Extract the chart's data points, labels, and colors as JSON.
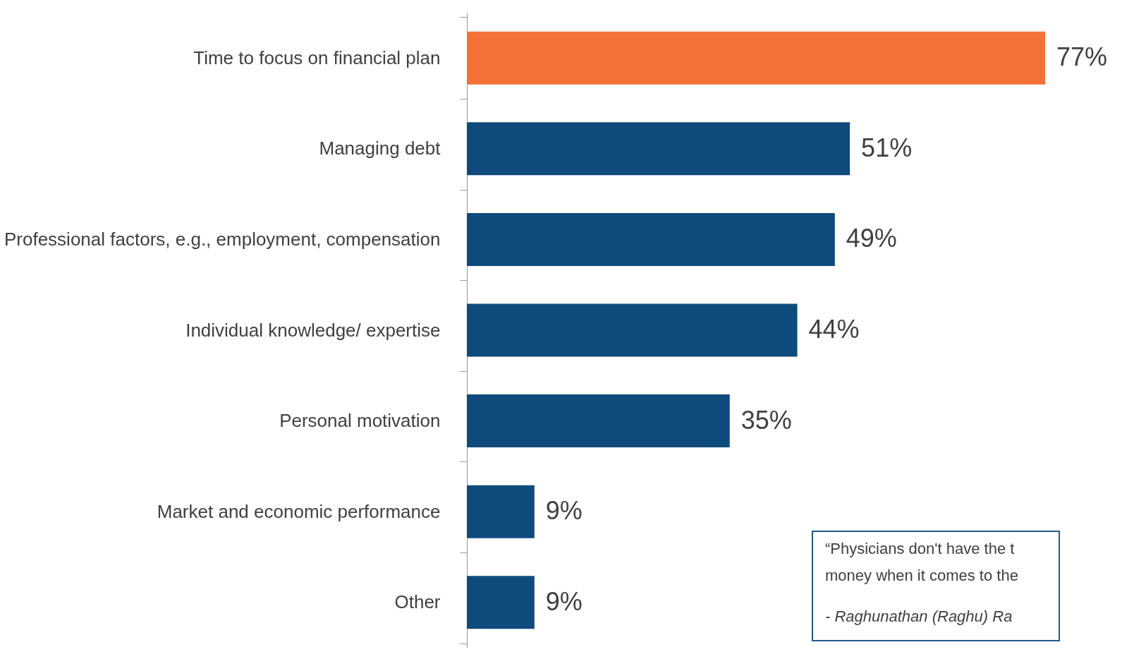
{
  "chart_data": {
    "type": "bar",
    "orientation": "horizontal",
    "grid": false,
    "categories": [
      "Time to focus on financial plan",
      "Managing debt",
      "Professional factors, e.g., employment, compensation",
      "Individual knowledge/ expertise",
      "Personal motivation",
      "Market and economic performance",
      "Other"
    ],
    "values": [
      77,
      51,
      49,
      44,
      35,
      9,
      9
    ],
    "value_labels": [
      "77%",
      "51%",
      "49%",
      "44%",
      "35%",
      "9%",
      "9%"
    ],
    "colors": [
      "#f37036",
      "#0f4a7c",
      "#0f4a7c",
      "#0f4a7c",
      "#0f4a7c",
      "#0f4a7c",
      "#0f4a7c"
    ],
    "annotations": [
      "“Physicians don't have the t",
      "money when it comes to the",
      "- Raghunathan (Raghu) Ra"
    ]
  }
}
